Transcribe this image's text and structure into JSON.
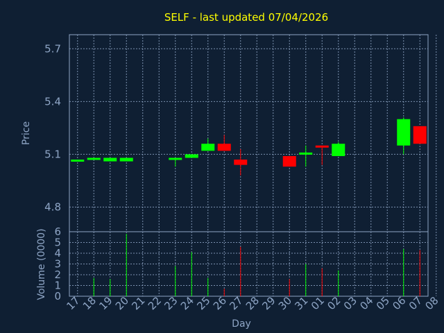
{
  "chart_data": {
    "type": "candlestick",
    "title": "SELF - last updated 07/04/2026",
    "xlabel": "Day",
    "ylabel_price": "Price",
    "ylabel_volume": "Volume (0000)",
    "x_ticks": [
      "17",
      "18",
      "19",
      "20",
      "21",
      "22",
      "23",
      "24",
      "25",
      "26",
      "27",
      "28",
      "29",
      "30",
      "31",
      "01",
      "02",
      "03",
      "04",
      "05",
      "06",
      "07",
      "08"
    ],
    "price_ticks": [
      "4.8",
      "5.1",
      "5.4",
      "5.7"
    ],
    "price_ylim": [
      4.66,
      5.78
    ],
    "volume_ticks": [
      "0",
      "1",
      "2",
      "3",
      "4",
      "5",
      "6"
    ],
    "volume_ylim": [
      0,
      6
    ],
    "grid": true,
    "up_color": "#00ff00",
    "down_color": "#ff0000",
    "candles": [
      {
        "day": "17",
        "open": 5.06,
        "high": 5.07,
        "low": 5.06,
        "close": 5.07,
        "volume": 0
      },
      {
        "day": "18",
        "open": 5.07,
        "high": 5.08,
        "low": 5.07,
        "close": 5.08,
        "volume": 1.7
      },
      {
        "day": "19",
        "open": 5.06,
        "high": 5.08,
        "low": 5.06,
        "close": 5.08,
        "volume": 1.6
      },
      {
        "day": "20",
        "open": 5.06,
        "high": 5.08,
        "low": 5.06,
        "close": 5.08,
        "volume": 5.8
      },
      {
        "day": "23",
        "open": 5.07,
        "high": 5.08,
        "low": 5.03,
        "close": 5.08,
        "volume": 2.8
      },
      {
        "day": "24",
        "open": 5.08,
        "high": 5.1,
        "low": 5.08,
        "close": 5.1,
        "volume": 4.1
      },
      {
        "day": "25",
        "open": 5.12,
        "high": 5.19,
        "low": 5.12,
        "close": 5.16,
        "volume": 1.7
      },
      {
        "day": "26",
        "open": 5.16,
        "high": 5.21,
        "low": 5.12,
        "close": 5.12,
        "volume": 0.7
      },
      {
        "day": "27",
        "open": 5.07,
        "high": 5.13,
        "low": 4.98,
        "close": 5.04,
        "volume": 4.6
      },
      {
        "day": "30",
        "open": 5.09,
        "high": 5.09,
        "low": 5.03,
        "close": 5.03,
        "volume": 1.6
      },
      {
        "day": "31",
        "open": 5.1,
        "high": 5.15,
        "low": 5.03,
        "close": 5.11,
        "volume": 3.0
      },
      {
        "day": "01",
        "open": 5.15,
        "high": 5.15,
        "low": 5.04,
        "close": 5.14,
        "volume": 2.6
      },
      {
        "day": "02",
        "open": 5.09,
        "high": 5.17,
        "low": 5.09,
        "close": 5.16,
        "volume": 2.4
      },
      {
        "day": "06",
        "open": 5.15,
        "high": 5.31,
        "low": 5.1,
        "close": 5.3,
        "volume": 4.4
      },
      {
        "day": "07",
        "open": 5.26,
        "high": 5.26,
        "low": 5.16,
        "close": 5.16,
        "volume": 4.3
      }
    ]
  }
}
